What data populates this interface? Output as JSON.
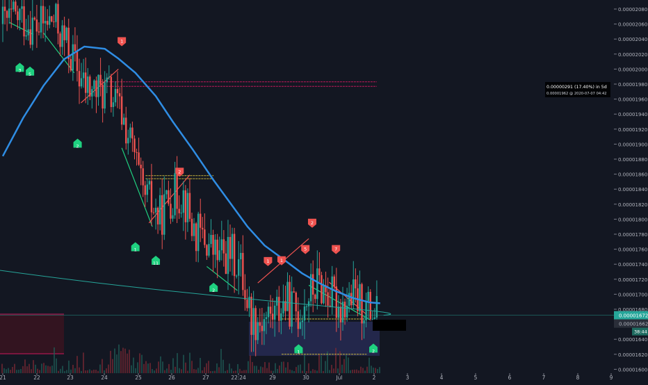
{
  "chart_data": {
    "type": "candlestick",
    "y_axis": {
      "position": "right",
      "min": 1.6e-05,
      "max": 2.09e-05,
      "ticks": [
        "0.00002080",
        "0.00002060",
        "0.00002040",
        "0.00002020",
        "0.00002000",
        "0.00001980",
        "0.00001960",
        "0.00001940",
        "0.00001920",
        "0.00001900",
        "0.00001880",
        "0.00001860",
        "0.00001840",
        "0.00001820",
        "0.00001800",
        "0.00001780",
        "0.00001760",
        "0.00001740",
        "0.00001720",
        "0.00001700",
        "0.00001680",
        "0.00001660",
        "0.00001640",
        "0.00001620",
        "0.00001600"
      ]
    },
    "x_axis": {
      "ticks": [
        "21",
        "22",
        "23",
        "24",
        "25",
        "26",
        "27",
        "22:24",
        "29",
        "30",
        "Jul",
        "2",
        "3",
        "4",
        "5",
        "6",
        "7",
        "8",
        "9"
      ]
    },
    "last_price": {
      "label": "0.00001672",
      "value": 1.672e-05
    },
    "countdown": {
      "label": "38:44"
    },
    "price_tag_hidden": {
      "label": "0.00001662"
    },
    "projection": {
      "line1": "0.00000291 (17.40%) in 5d",
      "line2": "0.00001962 @ 2020-07-07  04:42",
      "target_value": 1.962e-05,
      "target_day": 7.25
    },
    "moving_average_color": "#2f8de4",
    "up_color": "#26a69a",
    "down_color": "#ef5350",
    "buy_markers": [
      {
        "label": "3",
        "day": 21.5,
        "value": 2e-05
      },
      {
        "label": "5",
        "day": 21.8,
        "value": 1.995e-05
      },
      {
        "label": "2",
        "day": 23.2,
        "value": 1.899e-05
      },
      {
        "label": "1",
        "day": 24.9,
        "value": 1.761e-05
      },
      {
        "label": "11",
        "day": 25.5,
        "value": 1.743e-05
      },
      {
        "label": "2",
        "day": 27.2,
        "value": 1.707e-05
      },
      {
        "label": "1",
        "day": 29.7,
        "value": 1.625e-05
      },
      {
        "label": "2",
        "day": 31.9,
        "value": 1.626e-05
      }
    ],
    "sell_markers": [
      {
        "label": "1",
        "day": 24.5,
        "value": 2.037e-05
      },
      {
        "label": "2",
        "day": 26.2,
        "value": 1.863e-05
      },
      {
        "label": "1",
        "day": 28.8,
        "value": 1.744e-05
      },
      {
        "label": "1",
        "day": 29.2,
        "value": 1.745e-05
      },
      {
        "label": "5",
        "day": 29.9,
        "value": 1.76e-05
      },
      {
        "label": "7",
        "day": 30.8,
        "value": 1.76e-05
      },
      {
        "label": "2",
        "day": 30.1,
        "value": 1.795e-05
      }
    ],
    "resistance_lines": [
      {
        "value": 1.983e-05,
        "from": 23.8,
        "to": 32.0,
        "color": "#c2185b"
      },
      {
        "value": 1.977e-05,
        "from": 23.8,
        "to": 32.0,
        "color": "#c2185b"
      },
      {
        "value": 1.858e-05,
        "from": 25.2,
        "to": 27.2,
        "color": "#c8b43c"
      },
      {
        "value": 1.854e-05,
        "from": 25.2,
        "to": 27.2,
        "color": "#c8b43c"
      },
      {
        "value": 1.667e-05,
        "from": 29.2,
        "to": 31.7,
        "color": "#c8b43c"
      },
      {
        "value": 1.62e-05,
        "from": 29.2,
        "to": 31.7,
        "color": "#c8b43c"
      }
    ]
  }
}
